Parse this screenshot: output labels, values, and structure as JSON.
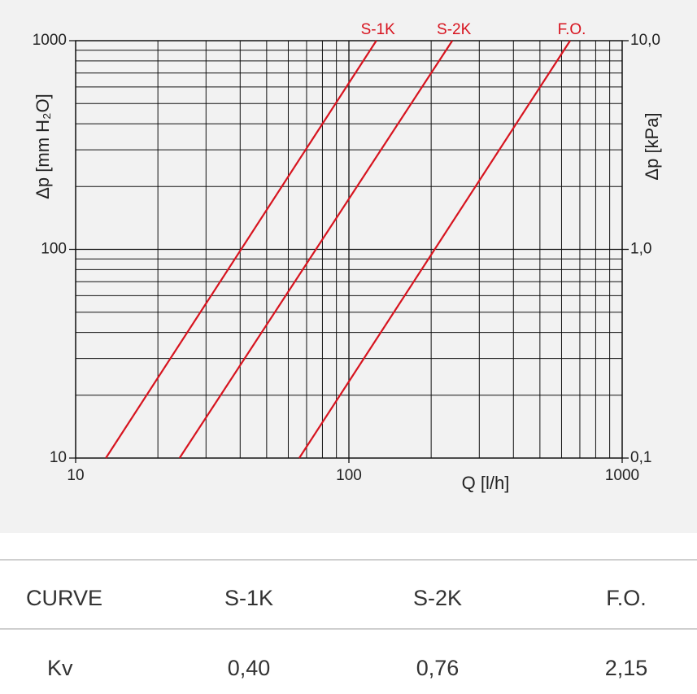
{
  "chart_data": {
    "type": "line",
    "xlabel": "Q [l/h]",
    "ylabel": "Δp [mm H₂O]",
    "y2label": "Δp [kPa]",
    "xlog": true,
    "ylog": true,
    "grid": true,
    "xlim": [
      10,
      1000
    ],
    "xticks": [
      10,
      100,
      1000
    ],
    "xticks_minor": [
      20,
      30,
      40,
      50,
      60,
      70,
      80,
      90,
      200,
      300,
      400,
      500,
      600,
      700,
      800,
      900
    ],
    "ylim": [
      10,
      1000
    ],
    "yticks": [
      10,
      100,
      1000
    ],
    "yticks_minor": [
      20,
      30,
      40,
      50,
      60,
      70,
      80,
      90,
      200,
      300,
      400,
      500,
      600,
      700,
      800,
      900
    ],
    "y2lim": [
      0.1,
      10
    ],
    "y2ticks": [
      {
        "value": 0.1,
        "label": "0,1"
      },
      {
        "value": 1,
        "label": "1,0"
      },
      {
        "value": 10,
        "label": "10,0"
      }
    ],
    "series": [
      {
        "name": "S-1K",
        "color": "#d7141f",
        "x": [
          12.9,
          126
        ],
        "values": [
          10,
          1000
        ]
      },
      {
        "name": "S-2K",
        "color": "#d7141f",
        "x": [
          24.0,
          239
        ],
        "values": [
          10,
          1000
        ]
      },
      {
        "name": "F.O.",
        "color": "#d7141f",
        "x": [
          65.8,
          645
        ],
        "values": [
          10,
          1000
        ]
      }
    ]
  },
  "table": {
    "header": [
      "CURVE",
      "S-1K",
      "S-2K",
      "F.O."
    ],
    "rows": [
      [
        "Kv",
        "0,40",
        "0,76",
        "2,15"
      ]
    ]
  }
}
